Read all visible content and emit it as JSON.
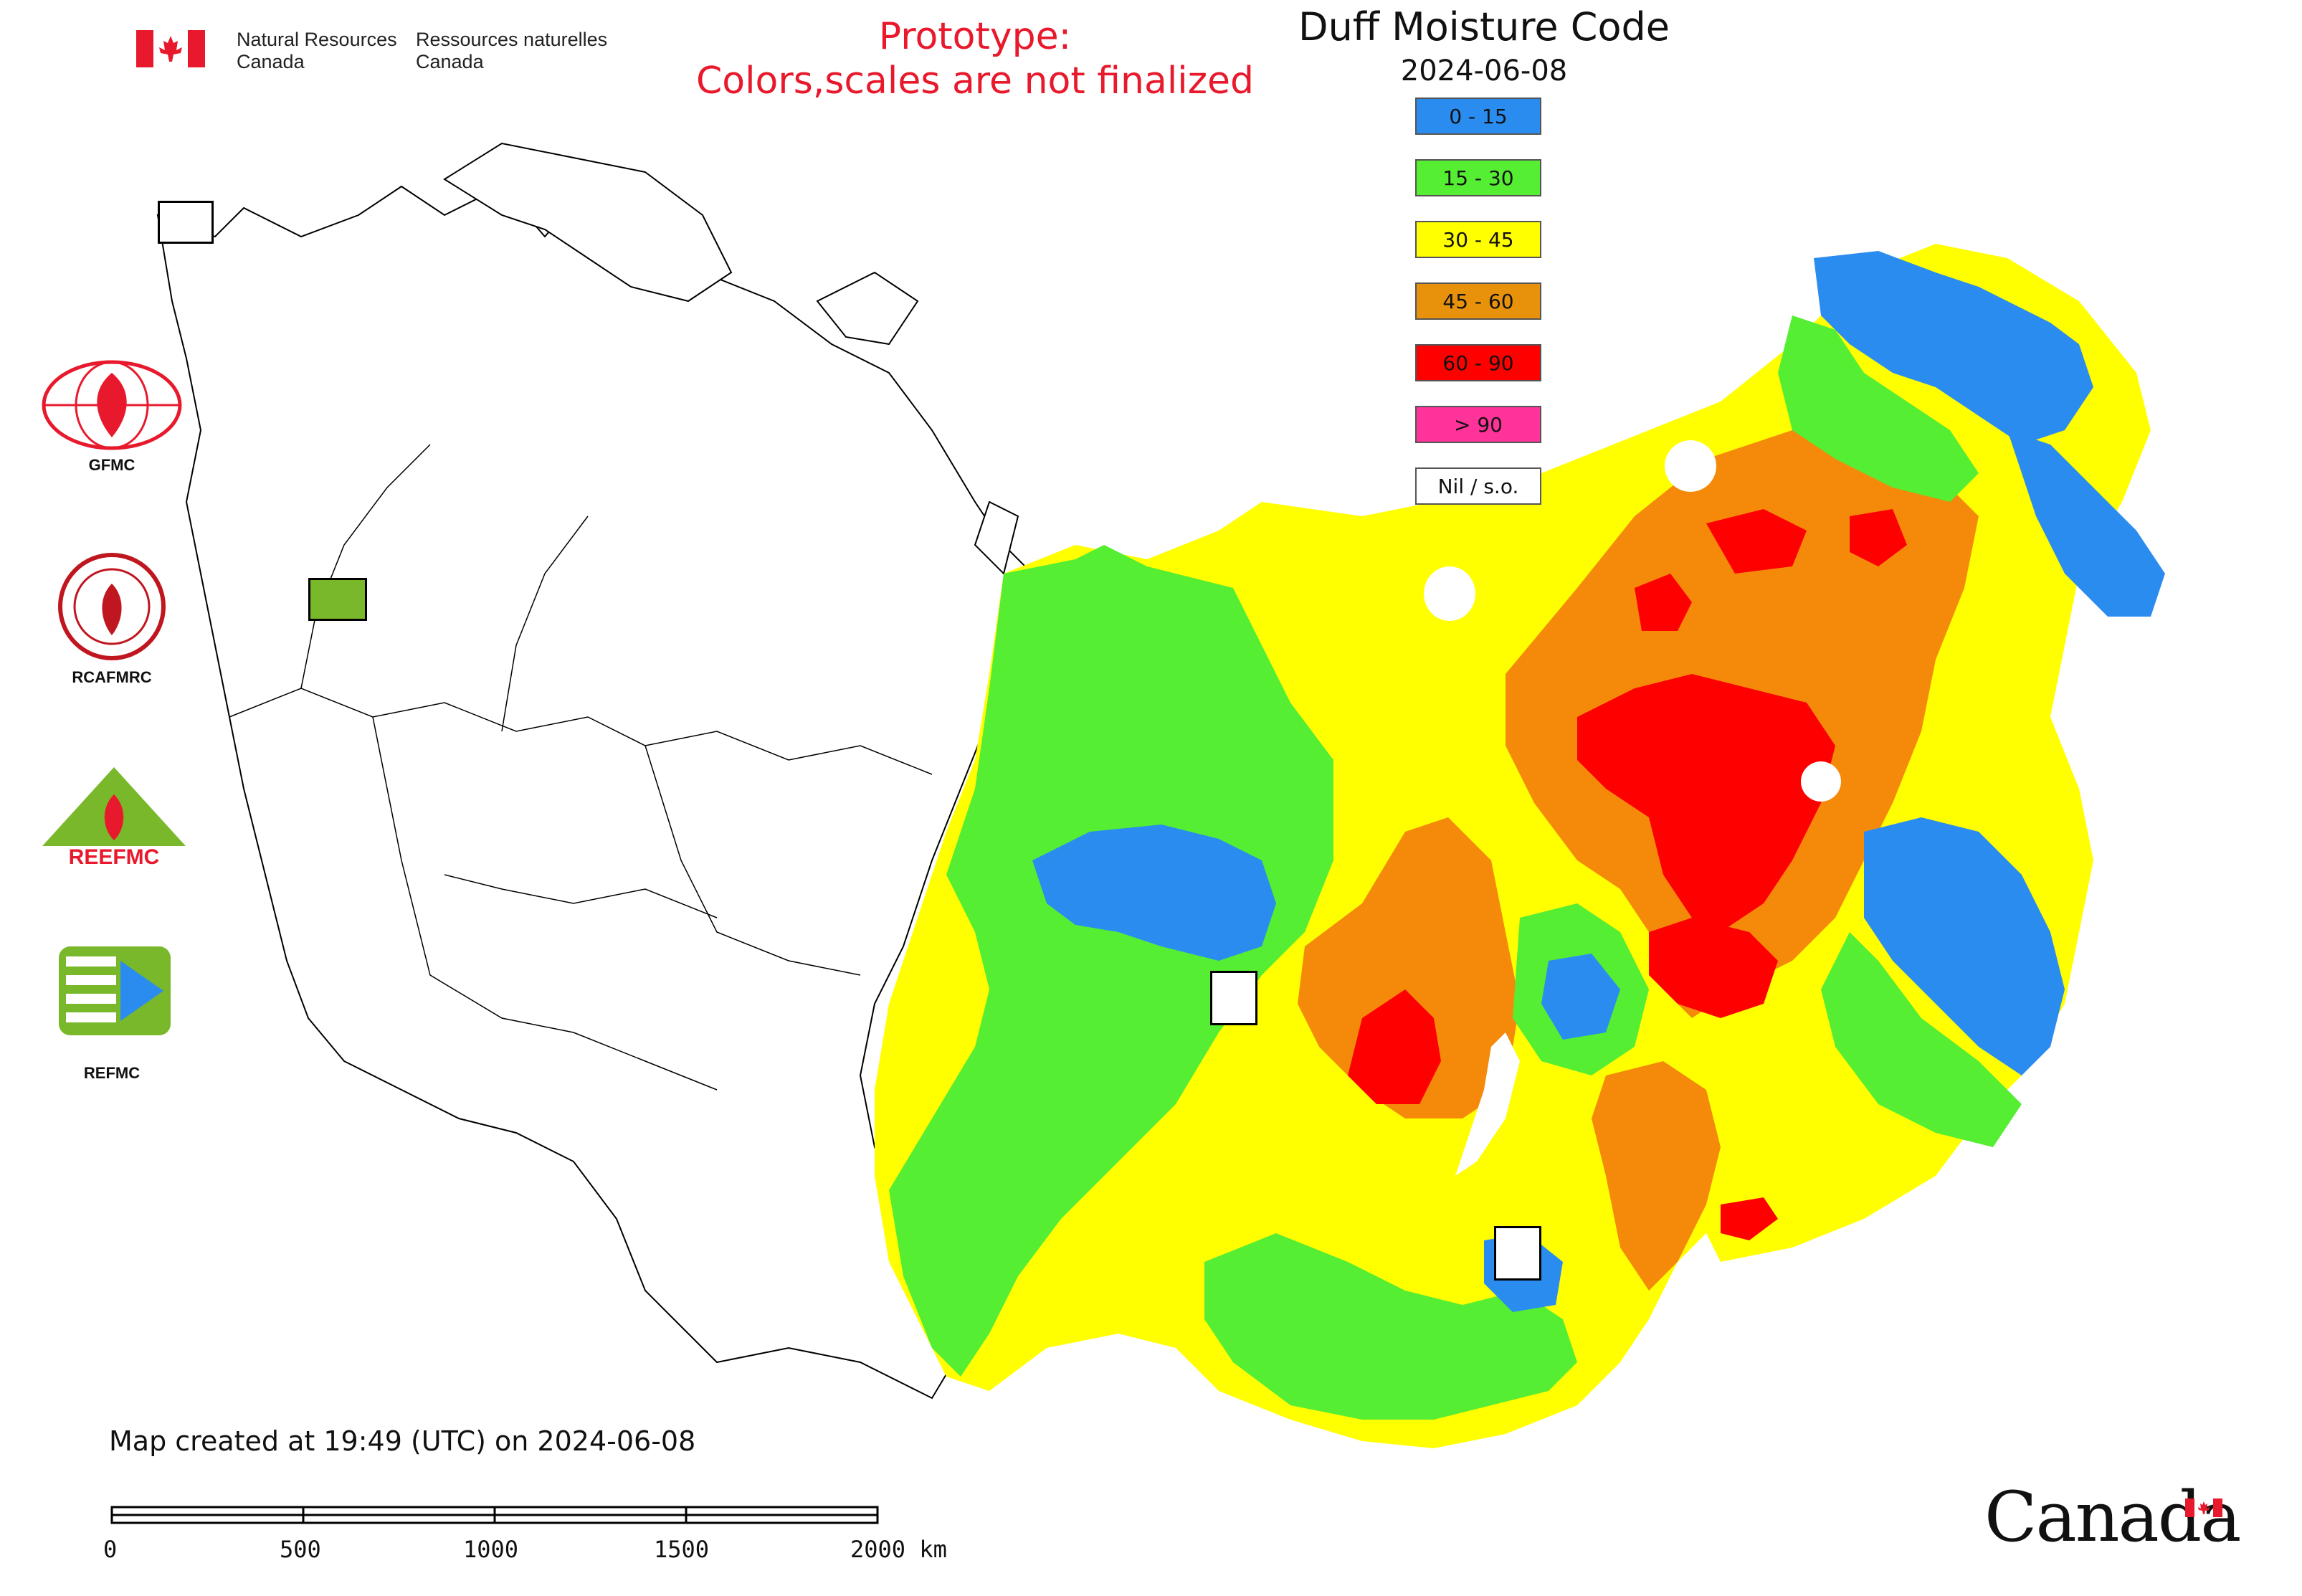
{
  "header": {
    "agency_en_line1": "Natural Resources",
    "agency_en_line2": "Canada",
    "agency_fr_line1": "Ressources naturelles",
    "agency_fr_line2": "Canada",
    "prototype_line1": "Prototype:",
    "prototype_line2": "Colors,scales are not finalized"
  },
  "map": {
    "title": "Duff Moisture Code",
    "date": "2024-06-08",
    "created_note": "Map created at 19:49 (UTC) on 2024-06-08"
  },
  "legend": [
    {
      "label": "0 - 15",
      "color": "#2b8cf0"
    },
    {
      "label": "15 - 30",
      "color": "#55ee33"
    },
    {
      "label": "30 - 45",
      "color": "#ffff00"
    },
    {
      "label": "45 - 60",
      "color": "#e8920c"
    },
    {
      "label": "60 - 90",
      "color": "#ff0000"
    },
    {
      "label": "> 90",
      "color": "#ff3399"
    },
    {
      "label": "Nil / s.o.",
      "color": "#ffffff"
    }
  ],
  "orgs": [
    {
      "label": "GFMC",
      "icon": "gfmc-logo-icon"
    },
    {
      "label": "RCAFMRC",
      "icon": "rcafmrc-logo-icon"
    },
    {
      "label": "",
      "icon": "reefmc-logo-icon",
      "logo_text": "REEFMC"
    },
    {
      "label": "REFMC",
      "icon": "refmc-logo-icon"
    }
  ],
  "scale_bar": {
    "ticks": [
      "0",
      "500",
      "1000",
      "1500",
      "2000 km"
    ]
  },
  "footer": {
    "wordmark": "Canada"
  }
}
